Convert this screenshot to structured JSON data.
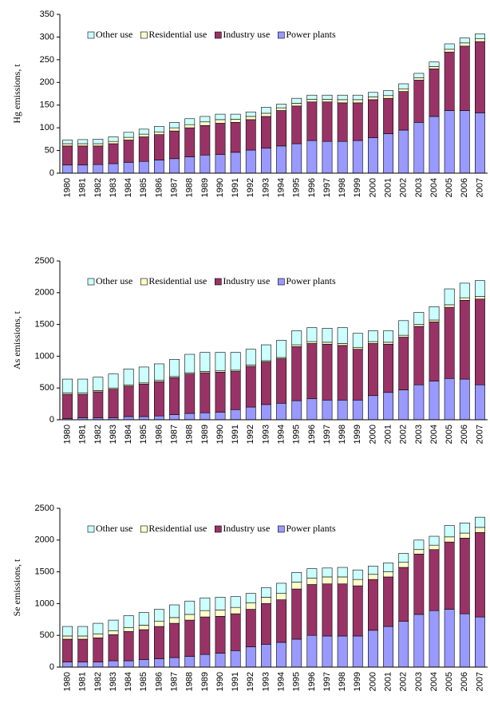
{
  "chart_data": [
    {
      "type": "bar",
      "stacked": true,
      "ylabel": "Hg emissions, t",
      "categories": [
        "1980",
        "1981",
        "1982",
        "1983",
        "1984",
        "1985",
        "1986",
        "1987",
        "1988",
        "1989",
        "1990",
        "1991",
        "1992",
        "1993",
        "1994",
        "1995",
        "1996",
        "1997",
        "1998",
        "1999",
        "2000",
        "2001",
        "2002",
        "2003",
        "2004",
        "2005",
        "2006",
        "2007"
      ],
      "series": [
        {
          "name": "Other use",
          "color": "#ccffff",
          "values": [
            8,
            9,
            10,
            10,
            11,
            11,
            12,
            12,
            13,
            12,
            12,
            11,
            10,
            13,
            8,
            11,
            9,
            9,
            10,
            10,
            10,
            11,
            11,
            10,
            10,
            12,
            11,
            11
          ]
        },
        {
          "name": "Residential use",
          "color": "#ffffcc",
          "values": [
            5,
            5,
            5,
            5,
            6,
            6,
            6,
            7,
            7,
            8,
            8,
            7,
            7,
            7,
            6,
            6,
            6,
            6,
            7,
            7,
            6,
            6,
            6,
            5,
            5,
            6,
            7,
            6
          ]
        },
        {
          "name": "Industry use",
          "color": "#993366",
          "values": [
            42,
            42,
            41,
            44,
            49,
            54,
            56,
            61,
            64,
            65,
            69,
            66,
            67,
            70,
            78,
            83,
            85,
            87,
            85,
            83,
            84,
            78,
            85,
            93,
            105,
            129,
            142,
            157
          ]
        },
        {
          "name": "Power plants",
          "color": "#9999ff",
          "values": [
            18,
            18,
            19,
            21,
            24,
            26,
            29,
            32,
            36,
            40,
            41,
            46,
            51,
            55,
            60,
            65,
            72,
            70,
            70,
            72,
            78,
            87,
            95,
            112,
            125,
            138,
            138,
            133
          ]
        }
      ],
      "ylim": [
        0,
        350
      ],
      "yticks": [
        0,
        50,
        100,
        150,
        200,
        250,
        300,
        350
      ]
    },
    {
      "type": "bar",
      "stacked": true,
      "ylabel": "As emissions, t",
      "categories": [
        "1980",
        "1981",
        "1982",
        "1983",
        "1984",
        "1985",
        "1986",
        "1987",
        "1988",
        "1989",
        "1990",
        "1991",
        "1992",
        "1993",
        "1994",
        "1995",
        "1996",
        "1997",
        "1998",
        "1999",
        "2000",
        "2001",
        "2002",
        "2003",
        "2004",
        "2005",
        "2006",
        "2007"
      ],
      "series": [
        {
          "name": "Other use",
          "color": "#ccffff",
          "values": [
            220,
            220,
            210,
            220,
            250,
            250,
            260,
            270,
            290,
            300,
            290,
            280,
            250,
            250,
            270,
            220,
            220,
            220,
            250,
            220,
            170,
            180,
            230,
            190,
            210,
            250,
            230,
            250
          ]
        },
        {
          "name": "Residential use",
          "color": "#ffffcc",
          "values": [
            20,
            20,
            20,
            20,
            20,
            20,
            20,
            20,
            20,
            20,
            20,
            20,
            20,
            20,
            20,
            30,
            30,
            30,
            30,
            30,
            30,
            30,
            30,
            30,
            30,
            40,
            40,
            40
          ]
        },
        {
          "name": "Industry use",
          "color": "#993366",
          "values": [
            380,
            370,
            410,
            450,
            480,
            510,
            540,
            580,
            620,
            630,
            630,
            600,
            640,
            670,
            700,
            850,
            870,
            880,
            860,
            800,
            820,
            760,
            830,
            920,
            930,
            1120,
            1240,
            1350
          ]
        },
        {
          "name": "Power plants",
          "color": "#9999ff",
          "values": [
            20,
            30,
            30,
            30,
            50,
            50,
            60,
            80,
            100,
            110,
            120,
            160,
            200,
            240,
            260,
            300,
            330,
            310,
            310,
            310,
            380,
            430,
            470,
            550,
            610,
            650,
            640,
            550
          ]
        }
      ],
      "ylim": [
        0,
        2500
      ],
      "yticks": [
        0,
        500,
        1000,
        1500,
        2000,
        2500
      ]
    },
    {
      "type": "bar",
      "stacked": true,
      "ylabel": "Se emissions, t",
      "categories": [
        "1980",
        "1981",
        "1982",
        "1983",
        "1984",
        "1985",
        "1986",
        "1987",
        "1988",
        "1989",
        "1990",
        "1991",
        "1992",
        "1993",
        "1994",
        "1995",
        "1996",
        "1997",
        "1998",
        "1999",
        "2000",
        "2001",
        "2002",
        "2003",
        "2004",
        "2005",
        "2006",
        "2007"
      ],
      "series": [
        {
          "name": "Other use",
          "color": "#ccffff",
          "values": [
            150,
            150,
            170,
            170,
            190,
            200,
            190,
            200,
            210,
            200,
            200,
            170,
            150,
            150,
            160,
            150,
            150,
            140,
            150,
            150,
            130,
            140,
            140,
            150,
            140,
            180,
            160,
            160
          ]
        },
        {
          "name": "Residential use",
          "color": "#ffffcc",
          "values": [
            50,
            50,
            60,
            60,
            60,
            70,
            80,
            90,
            90,
            100,
            100,
            100,
            100,
            100,
            100,
            110,
            100,
            110,
            110,
            100,
            80,
            80,
            80,
            70,
            70,
            80,
            80,
            80
          ]
        },
        {
          "name": "Industry use",
          "color": "#993366",
          "values": [
            360,
            360,
            380,
            410,
            460,
            470,
            510,
            540,
            570,
            590,
            580,
            580,
            590,
            640,
            670,
            790,
            800,
            820,
            820,
            790,
            800,
            780,
            850,
            950,
            960,
            1060,
            1190,
            1330
          ]
        },
        {
          "name": "Power plants",
          "color": "#9999ff",
          "values": [
            80,
            80,
            80,
            100,
            100,
            120,
            130,
            150,
            170,
            200,
            220,
            260,
            320,
            360,
            390,
            440,
            500,
            490,
            490,
            490,
            580,
            640,
            720,
            830,
            890,
            910,
            840,
            790
          ]
        }
      ],
      "ylim": [
        0,
        2500
      ],
      "yticks": [
        0,
        500,
        1000,
        1500,
        2000,
        2500
      ]
    }
  ]
}
